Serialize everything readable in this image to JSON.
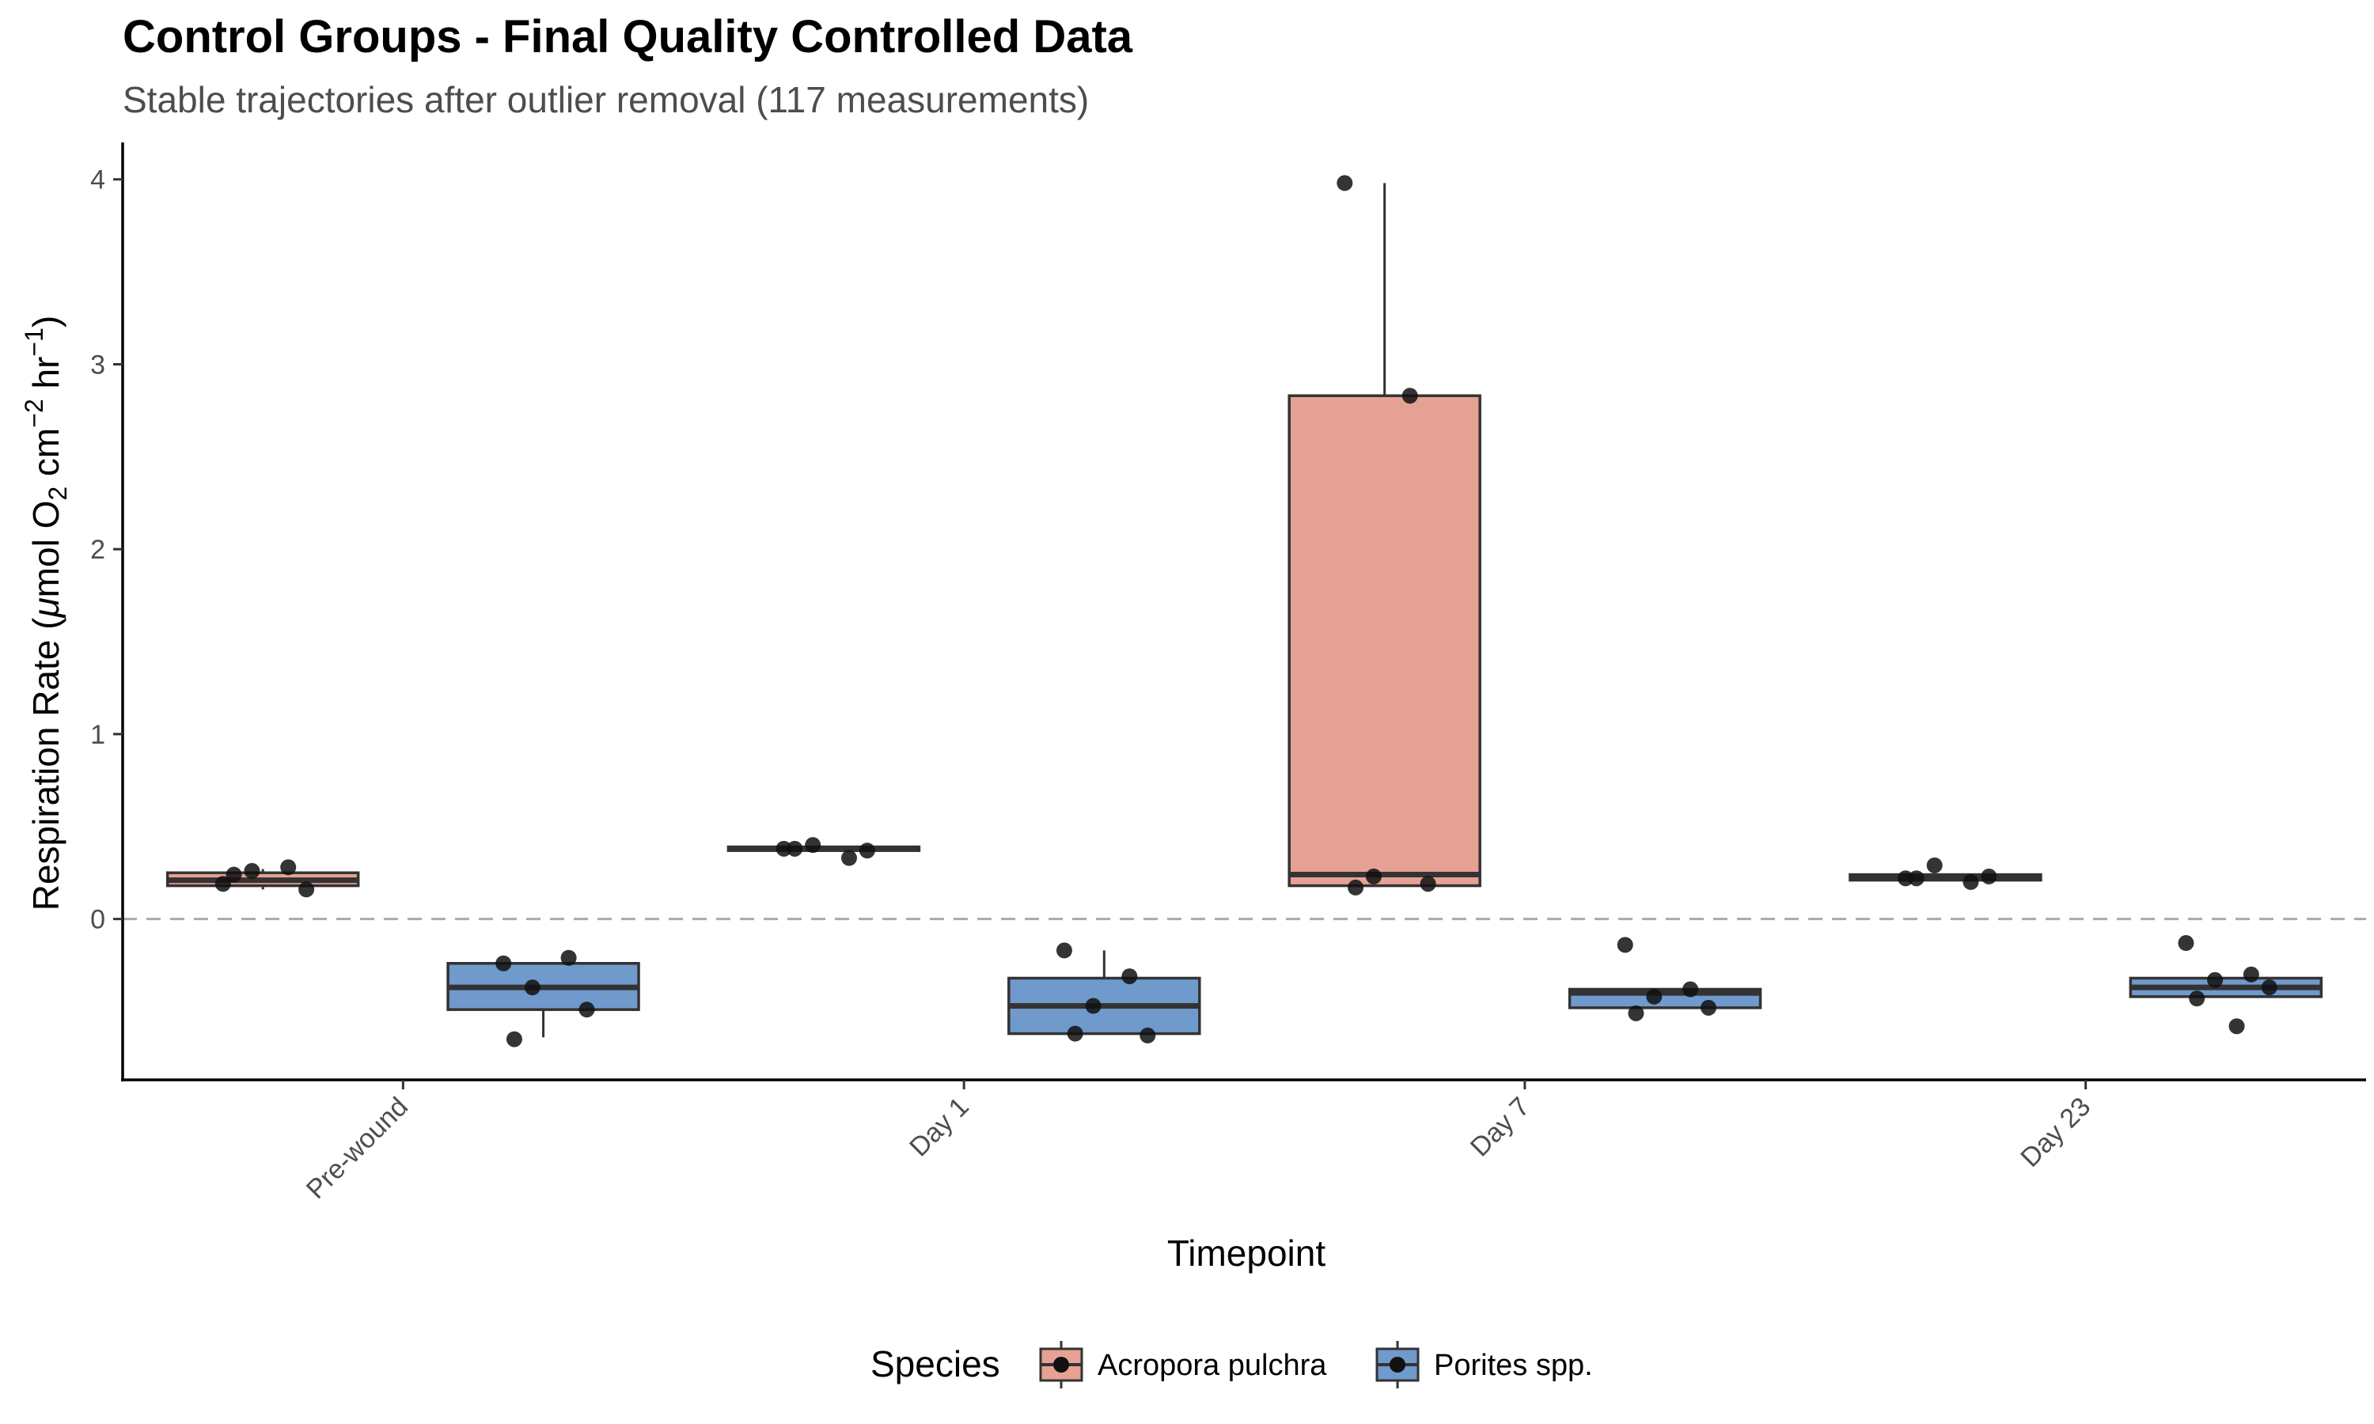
{
  "chart_data": {
    "type": "box",
    "title": "Control Groups - Final Quality Controlled Data",
    "subtitle": "Stable trajectories after outlier removal (117 measurements)",
    "xlabel": "Timepoint",
    "ylabel_parts": {
      "a": "Respiration Rate (",
      "mu": "μ",
      "b": "mol O",
      "sub2": "2",
      "c": " cm",
      "sup_neg2": "−2",
      "d": " hr",
      "sup_neg1": "−1",
      "e": ")"
    },
    "categories": [
      "Pre-wound",
      "Day 1",
      "Day 7",
      "Day 23"
    ],
    "y_ticks": [
      0,
      1,
      2,
      3,
      4
    ],
    "y_tick_labels": [
      "0",
      "1",
      "2",
      "3",
      "4"
    ],
    "ylim": [
      -0.87,
      4.2
    ],
    "reference_line": 0,
    "grid": false,
    "legend": {
      "title": "Species",
      "position": "bottom"
    },
    "series": [
      {
        "name": "Acropora pulchra",
        "color": "#E6A195",
        "boxes": [
          {
            "q1": 0.18,
            "median": 0.21,
            "q3": 0.25,
            "whisker_low": 0.16,
            "whisker_high": 0.27
          },
          {
            "q1": 0.37,
            "median": 0.38,
            "q3": 0.39,
            "whisker_low": 0.37,
            "whisker_high": 0.39
          },
          {
            "q1": 0.18,
            "median": 0.24,
            "q3": 2.83,
            "whisker_low": 0.18,
            "whisker_high": 3.98
          },
          {
            "q1": 0.21,
            "median": 0.22,
            "q3": 0.24,
            "whisker_low": 0.21,
            "whisker_high": 0.24
          }
        ],
        "points": [
          [
            0.19,
            0.28,
            0.26,
            0.16,
            0.24
          ],
          [
            0.38,
            0.33,
            0.4,
            0.37,
            0.38
          ],
          [
            3.98,
            2.83,
            0.23,
            0.19,
            0.17
          ],
          [
            0.22,
            0.2,
            0.29,
            0.23,
            0.22
          ]
        ]
      },
      {
        "name": "Porites spp.",
        "color": "#7099CC",
        "boxes": [
          {
            "q1": -0.49,
            "median": -0.37,
            "q3": -0.24,
            "whisker_low": -0.64,
            "whisker_high": -0.24
          },
          {
            "q1": -0.62,
            "median": -0.47,
            "q3": -0.32,
            "whisker_low": -0.62,
            "whisker_high": -0.17
          },
          {
            "q1": -0.48,
            "median": -0.4,
            "q3": -0.38,
            "whisker_low": -0.48,
            "whisker_high": -0.38
          },
          {
            "q1": -0.42,
            "median": -0.37,
            "q3": -0.32,
            "whisker_low": -0.42,
            "whisker_high": -0.32
          }
        ],
        "points": [
          [
            -0.24,
            -0.21,
            -0.37,
            -0.49,
            -0.65
          ],
          [
            -0.17,
            -0.31,
            -0.47,
            -0.63,
            -0.62
          ],
          [
            -0.14,
            -0.38,
            -0.42,
            -0.48,
            -0.51
          ],
          [
            -0.13,
            -0.3,
            -0.33,
            -0.37,
            -0.43,
            -0.58
          ]
        ]
      }
    ]
  }
}
